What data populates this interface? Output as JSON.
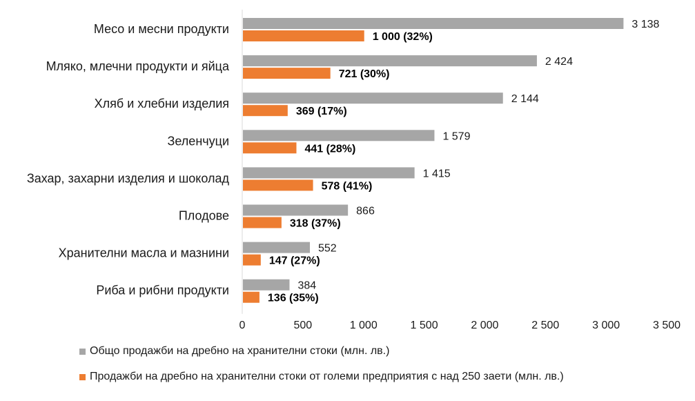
{
  "colors": {
    "total": "#a6a6a6",
    "large": "#ed7d31",
    "axis": "#d9d9d9"
  },
  "chart_data": {
    "type": "bar",
    "orientation": "horizontal",
    "categories": [
      "Месо и месни продукти",
      "Мляко, млечни продукти и яйца",
      "Хляб и хлебни изделия",
      "Зеленчуци",
      "Захар, захарни изделия и шоколад",
      "Плодове",
      "Хранителни масла и мазнини",
      "Риба и рибни продукти"
    ],
    "series": [
      {
        "name": "Общо продажби на дребно на хранителни стоки (млн. лв.)",
        "values": [
          3138,
          2424,
          2144,
          1579,
          1415,
          866,
          552,
          384
        ],
        "labels": [
          "3 138",
          "2 424",
          "2 144",
          "1 579",
          "1 415",
          "866",
          "552",
          "384"
        ]
      },
      {
        "name": "Продажби на дребно на хранителни стоки от големи предприятия с над 250 заети (млн. лв.)",
        "values": [
          1000,
          721,
          369,
          441,
          578,
          318,
          147,
          136
        ],
        "labels": [
          "1 000 (32%)",
          "721 (30%)",
          "369 (17%)",
          "441 (28%)",
          "578 (41%)",
          "318 (37%)",
          "147 (27%)",
          "136 (35%)"
        ]
      }
    ],
    "xlim": [
      0,
      3500
    ],
    "xticks": [
      0,
      500,
      1000,
      1500,
      2000,
      2500,
      3000,
      3500
    ],
    "xtick_labels": [
      "0",
      "500",
      "1 000",
      "1 500",
      "2 000",
      "2 500",
      "3 000",
      "3 500"
    ],
    "grid": false,
    "legend_position": "bottom"
  }
}
